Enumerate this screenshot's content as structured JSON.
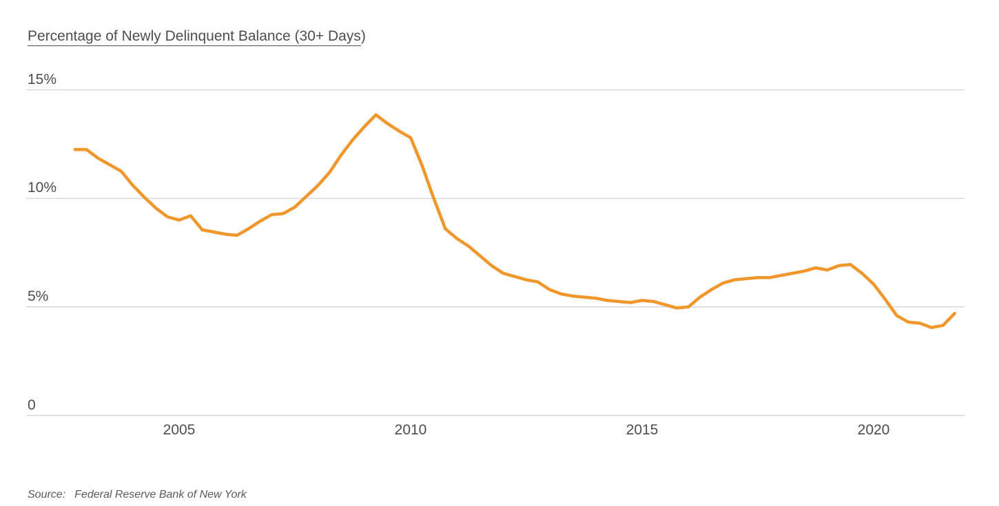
{
  "header": {
    "title": "Percentage of Newly Delinquent Balance (30+ Days)",
    "title_underlined": "Percentage of Newly Delinquent Balance (30+ Days",
    "title_suffix": ")"
  },
  "footer": {
    "source_label": "Source:",
    "source_text": "Federal Reserve Bank of New York"
  },
  "theme": {
    "line_color": "#F0962B",
    "grid_color": "#D9D9D9",
    "text_color": "#4D4D4D",
    "source_text_color": "#595959",
    "background": "#FFFFFF"
  },
  "chart_data": {
    "type": "line",
    "title": "Percentage of Newly Delinquent Balance (30+ Days)",
    "xlabel": "",
    "ylabel": "",
    "unit": "percent",
    "grid": "horizontal",
    "legend": "none",
    "ylim": [
      0,
      15
    ],
    "xlim": [
      2002.5,
      2022.0
    ],
    "y_ticks": [
      {
        "value": 15,
        "label": "15%"
      },
      {
        "value": 10,
        "label": "10%"
      },
      {
        "value": 5,
        "label": "5%"
      },
      {
        "value": 0,
        "label": "0"
      }
    ],
    "x_ticks": [
      {
        "value": 2005,
        "label": "2005"
      },
      {
        "value": 2010,
        "label": "2010"
      },
      {
        "value": 2015,
        "label": "2015"
      },
      {
        "value": 2020,
        "label": "2020"
      }
    ],
    "series": [
      {
        "name": "newly-delinquent-balance-30plus-days",
        "color": "#F0962B",
        "points": [
          [
            2002.75,
            12.25
          ],
          [
            2003.0,
            12.25
          ],
          [
            2003.25,
            11.85
          ],
          [
            2003.5,
            11.55
          ],
          [
            2003.75,
            11.25
          ],
          [
            2004.0,
            10.6
          ],
          [
            2004.25,
            10.05
          ],
          [
            2004.5,
            9.55
          ],
          [
            2004.75,
            9.15
          ],
          [
            2005.0,
            9.0
          ],
          [
            2005.25,
            9.2
          ],
          [
            2005.5,
            8.55
          ],
          [
            2005.75,
            8.45
          ],
          [
            2006.0,
            8.35
          ],
          [
            2006.25,
            8.3
          ],
          [
            2006.5,
            8.6
          ],
          [
            2006.75,
            8.95
          ],
          [
            2007.0,
            9.25
          ],
          [
            2007.25,
            9.3
          ],
          [
            2007.5,
            9.6
          ],
          [
            2007.75,
            10.1
          ],
          [
            2008.0,
            10.6
          ],
          [
            2008.25,
            11.2
          ],
          [
            2008.5,
            12.0
          ],
          [
            2008.75,
            12.7
          ],
          [
            2009.0,
            13.3
          ],
          [
            2009.25,
            13.85
          ],
          [
            2009.5,
            13.45
          ],
          [
            2009.75,
            13.1
          ],
          [
            2010.0,
            12.8
          ],
          [
            2010.25,
            11.5
          ],
          [
            2010.5,
            10.0
          ],
          [
            2010.75,
            8.6
          ],
          [
            2011.0,
            8.15
          ],
          [
            2011.25,
            7.8
          ],
          [
            2011.5,
            7.35
          ],
          [
            2011.75,
            6.9
          ],
          [
            2012.0,
            6.55
          ],
          [
            2012.25,
            6.4
          ],
          [
            2012.5,
            6.25
          ],
          [
            2012.75,
            6.15
          ],
          [
            2013.0,
            5.8
          ],
          [
            2013.25,
            5.6
          ],
          [
            2013.5,
            5.5
          ],
          [
            2013.75,
            5.45
          ],
          [
            2014.0,
            5.4
          ],
          [
            2014.25,
            5.3
          ],
          [
            2014.5,
            5.25
          ],
          [
            2014.75,
            5.2
          ],
          [
            2015.0,
            5.3
          ],
          [
            2015.25,
            5.25
          ],
          [
            2015.5,
            5.1
          ],
          [
            2015.75,
            4.95
          ],
          [
            2016.0,
            5.0
          ],
          [
            2016.25,
            5.45
          ],
          [
            2016.5,
            5.8
          ],
          [
            2016.75,
            6.1
          ],
          [
            2017.0,
            6.25
          ],
          [
            2017.25,
            6.3
          ],
          [
            2017.5,
            6.35
          ],
          [
            2017.75,
            6.35
          ],
          [
            2018.0,
            6.45
          ],
          [
            2018.25,
            6.55
          ],
          [
            2018.5,
            6.65
          ],
          [
            2018.75,
            6.8
          ],
          [
            2019.0,
            6.7
          ],
          [
            2019.25,
            6.9
          ],
          [
            2019.5,
            6.95
          ],
          [
            2019.75,
            6.55
          ],
          [
            2020.0,
            6.05
          ],
          [
            2020.25,
            5.35
          ],
          [
            2020.5,
            4.6
          ],
          [
            2020.75,
            4.3
          ],
          [
            2021.0,
            4.25
          ],
          [
            2021.25,
            4.05
          ],
          [
            2021.5,
            4.15
          ],
          [
            2021.75,
            4.7
          ]
        ]
      }
    ]
  }
}
